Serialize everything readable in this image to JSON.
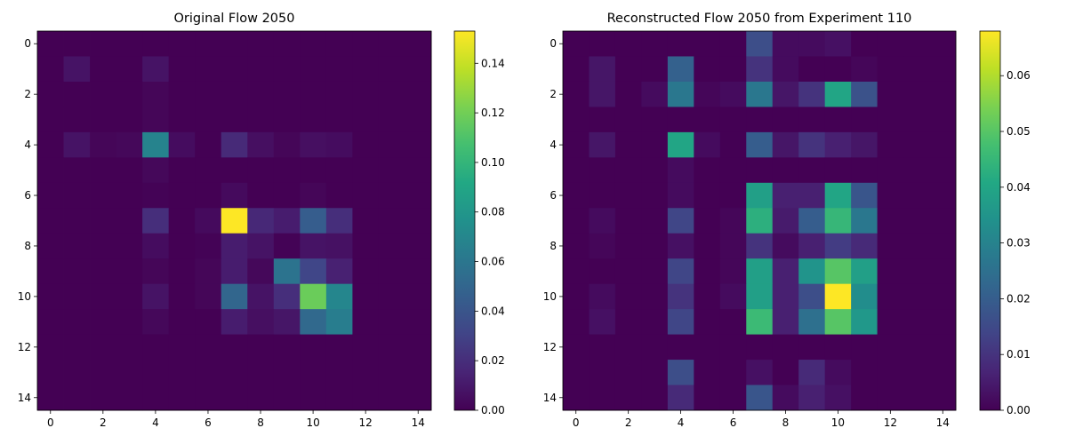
{
  "chart_data": [
    {
      "type": "heatmap",
      "title": "Original Flow 2050",
      "xlabel": "",
      "ylabel": "",
      "x_ticks": [
        0,
        2,
        4,
        6,
        8,
        10,
        12,
        14
      ],
      "y_ticks": [
        0,
        2,
        4,
        6,
        8,
        10,
        12,
        14
      ],
      "colorbar_ticks": [
        "0.00",
        "0.02",
        "0.04",
        "0.06",
        "0.08",
        "0.10",
        "0.12",
        "0.14"
      ],
      "vmin": 0,
      "vmax": 0.153,
      "colormap": "viridis",
      "values": [
        [
          0,
          0,
          0,
          0,
          0,
          0,
          0,
          0,
          0,
          0,
          0,
          0,
          0,
          0,
          0
        ],
        [
          0,
          0.008,
          0,
          0,
          0.008,
          0,
          0,
          0,
          0,
          0,
          0,
          0,
          0,
          0,
          0
        ],
        [
          0,
          0,
          0,
          0,
          0.002,
          0,
          0,
          0,
          0,
          0,
          0,
          0,
          0,
          0,
          0
        ],
        [
          0,
          0,
          0,
          0,
          0.002,
          0,
          0,
          0,
          0,
          0,
          0,
          0,
          0,
          0,
          0
        ],
        [
          0,
          0.008,
          0.002,
          0.003,
          0.068,
          0.005,
          0,
          0.018,
          0.006,
          0.002,
          0.006,
          0.005,
          0,
          0,
          0
        ],
        [
          0,
          0,
          0,
          0,
          0.003,
          0,
          0,
          0,
          0,
          0,
          0,
          0,
          0,
          0,
          0
        ],
        [
          0,
          0,
          0,
          0,
          0.001,
          0,
          0,
          0.004,
          0,
          0,
          0.002,
          0,
          0,
          0,
          0
        ],
        [
          0,
          0,
          0,
          0,
          0.02,
          0,
          0.004,
          0.153,
          0.017,
          0.012,
          0.045,
          0.02,
          0,
          0,
          0
        ],
        [
          0,
          0,
          0,
          0,
          0.005,
          0,
          0.001,
          0.012,
          0.008,
          0.001,
          0.008,
          0.007,
          0,
          0,
          0
        ],
        [
          0,
          0,
          0,
          0,
          0.002,
          0,
          0.002,
          0.012,
          0.003,
          0.058,
          0.032,
          0.014,
          0,
          0,
          0
        ],
        [
          0,
          0,
          0,
          0,
          0.008,
          0,
          0.002,
          0.05,
          0.008,
          0.02,
          0.118,
          0.07,
          0,
          0,
          0
        ],
        [
          0,
          0,
          0,
          0,
          0.003,
          0,
          0,
          0.012,
          0.006,
          0.009,
          0.052,
          0.064,
          0,
          0,
          0
        ],
        [
          0,
          0,
          0,
          0,
          0,
          0,
          0,
          0,
          0,
          0,
          0,
          0,
          0,
          0,
          0
        ],
        [
          0,
          0,
          0,
          0,
          0,
          0,
          0,
          0,
          0,
          0,
          0,
          0,
          0,
          0,
          0
        ],
        [
          0,
          0,
          0,
          0,
          0,
          0,
          0,
          0,
          0,
          0,
          0,
          0,
          0,
          0,
          0
        ]
      ]
    },
    {
      "type": "heatmap",
      "title": "Reconstructed Flow 2050 from Experiment 110",
      "xlabel": "",
      "ylabel": "",
      "x_ticks": [
        0,
        2,
        4,
        6,
        8,
        10,
        12,
        14
      ],
      "y_ticks": [
        0,
        2,
        4,
        6,
        8,
        10,
        12,
        14
      ],
      "colorbar_ticks": [
        "0.00",
        "0.01",
        "0.02",
        "0.03",
        "0.04",
        "0.05",
        "0.06"
      ],
      "vmin": 0,
      "vmax": 0.068,
      "colormap": "viridis",
      "values": [
        [
          0,
          0,
          0,
          0,
          0,
          0,
          0,
          0.016,
          0.002,
          0.002,
          0.003,
          0,
          0,
          0,
          0
        ],
        [
          0,
          0.004,
          0,
          0,
          0.021,
          0,
          0,
          0.01,
          0.002,
          0,
          0,
          0.001,
          0,
          0,
          0
        ],
        [
          0,
          0.004,
          0,
          0.002,
          0.027,
          0.001,
          0.002,
          0.027,
          0.004,
          0.01,
          0.04,
          0.017,
          0,
          0,
          0
        ],
        [
          0,
          0,
          0,
          0,
          0,
          0,
          0,
          0,
          0,
          0,
          0,
          0,
          0,
          0,
          0
        ],
        [
          0,
          0.004,
          0,
          0,
          0.04,
          0.002,
          0,
          0.02,
          0.004,
          0.01,
          0.006,
          0.004,
          0,
          0,
          0
        ],
        [
          0,
          0,
          0,
          0,
          0.002,
          0,
          0,
          0,
          0,
          0,
          0,
          0,
          0,
          0,
          0
        ],
        [
          0,
          0,
          0,
          0,
          0.002,
          0,
          0,
          0.038,
          0.006,
          0.006,
          0.04,
          0.018,
          0,
          0,
          0
        ],
        [
          0,
          0.002,
          0,
          0,
          0.014,
          0,
          0.001,
          0.043,
          0.005,
          0.02,
          0.045,
          0.027,
          0,
          0,
          0
        ],
        [
          0,
          0.001,
          0,
          0,
          0.003,
          0,
          0.001,
          0.01,
          0.002,
          0.006,
          0.012,
          0.008,
          0,
          0,
          0
        ],
        [
          0,
          0,
          0,
          0,
          0.014,
          0,
          0.001,
          0.038,
          0.006,
          0.035,
          0.05,
          0.038,
          0,
          0,
          0
        ],
        [
          0,
          0.002,
          0,
          0,
          0.01,
          0,
          0.002,
          0.038,
          0.006,
          0.016,
          0.068,
          0.033,
          0,
          0,
          0
        ],
        [
          0,
          0.003,
          0,
          0,
          0.014,
          0,
          0,
          0.046,
          0.006,
          0.025,
          0.05,
          0.036,
          0,
          0,
          0
        ],
        [
          0,
          0,
          0,
          0,
          0,
          0,
          0,
          0,
          0,
          0,
          0,
          0,
          0,
          0,
          0
        ],
        [
          0,
          0,
          0,
          0,
          0.016,
          0,
          0,
          0.003,
          0,
          0.008,
          0.002,
          0,
          0,
          0,
          0
        ],
        [
          0,
          0,
          0,
          0,
          0.008,
          0,
          0,
          0.018,
          0.002,
          0.006,
          0.003,
          0,
          0,
          0,
          0
        ]
      ]
    }
  ]
}
